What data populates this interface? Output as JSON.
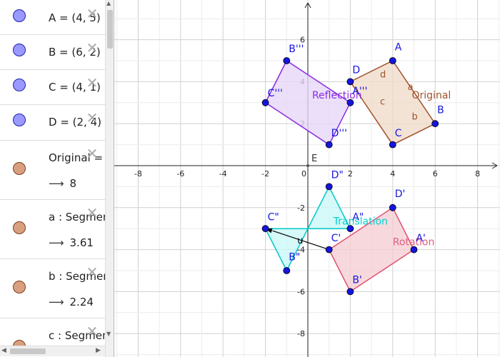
{
  "algebra": {
    "rows": [
      {
        "text": "A = (4, 5)"
      },
      {
        "text": "B = (6, 2)"
      },
      {
        "text": "C = (4, 1)"
      },
      {
        "text": "D = (2, 4)"
      },
      {
        "text": "Original =",
        "value": "8"
      },
      {
        "text": "a : Segmen",
        "value": "3.61"
      },
      {
        "text": "b : Segmen",
        "value": "2.24"
      },
      {
        "text": "c : Segmen"
      }
    ],
    "arrow": "⟶",
    "close": "✕"
  },
  "graph": {
    "x_ticks": [
      "-8",
      "-6",
      "-4",
      "-2",
      "0",
      "2",
      "4",
      "6",
      "8"
    ],
    "y_ticks": [
      "6",
      "4",
      "2",
      "-2",
      "-4",
      "-6",
      "-8"
    ],
    "origin_label": "E",
    "polygons": [
      {
        "name": "Original",
        "points": [
          [
            4,
            5
          ],
          [
            6,
            2
          ],
          [
            4,
            1
          ],
          [
            2,
            4
          ]
        ],
        "fill": "#f0dccb",
        "stroke": "#a0522d"
      },
      {
        "name": "Reflection",
        "points": [
          [
            -1,
            5
          ],
          [
            -2,
            3
          ],
          [
            1,
            1
          ],
          [
            2,
            3
          ]
        ],
        "fill": "#e6d7f7",
        "stroke": "#8a2be2"
      },
      {
        "name": "Translation",
        "points": [
          [
            -2,
            -3
          ],
          [
            -1,
            -5
          ],
          [
            1,
            -1
          ],
          [
            2,
            -3
          ]
        ],
        "fill": "#ccf7f7",
        "stroke": "#00c8c8"
      },
      {
        "name": "Rotation",
        "points": [
          [
            4,
            -2
          ],
          [
            5,
            -4
          ],
          [
            2,
            -6
          ],
          [
            1,
            -4
          ]
        ],
        "fill": "#f5d0d5",
        "stroke": "#e05070"
      }
    ],
    "poly_labels": [
      {
        "text": "Original",
        "x": 4.9,
        "y": 3.2,
        "color": "#a0522d"
      },
      {
        "text": "Reflection",
        "x": 0.2,
        "y": 3.2,
        "color": "#8a2be2"
      },
      {
        "text": "Translation",
        "x": 1.2,
        "y": -2.8,
        "color": "#00d0d0"
      },
      {
        "text": "Rotation",
        "x": 4.0,
        "y": -3.8,
        "color": "#e06080"
      }
    ],
    "segment_labels": [
      {
        "text": "a",
        "x": 4.7,
        "y": 3.6,
        "color": "#a0522d"
      },
      {
        "text": "b",
        "x": 4.9,
        "y": 2.2,
        "color": "#a0522d"
      },
      {
        "text": "c",
        "x": 3.4,
        "y": 2.9,
        "color": "#a0522d"
      },
      {
        "text": "d",
        "x": 3.4,
        "y": 4.2,
        "color": "#a0522d"
      }
    ],
    "points": [
      {
        "label": "A",
        "x": 4,
        "y": 5,
        "lx": 4.1,
        "ly": 5.5
      },
      {
        "label": "B",
        "x": 6,
        "y": 2,
        "lx": 6.1,
        "ly": 2.5
      },
      {
        "label": "C",
        "x": 4,
        "y": 1,
        "lx": 4.1,
        "ly": 1.4
      },
      {
        "label": "D",
        "x": 2,
        "y": 4,
        "lx": 2.1,
        "ly": 4.4
      },
      {
        "label": "A'''",
        "x": 2,
        "y": 3,
        "lx": 2.1,
        "ly": 3.4
      },
      {
        "label": "B'''",
        "x": -1,
        "y": 5,
        "lx": -0.9,
        "ly": 5.4
      },
      {
        "label": "C'''",
        "x": -2,
        "y": 3,
        "lx": -1.9,
        "ly": 3.3
      },
      {
        "label": "D'''",
        "x": 1,
        "y": 1,
        "lx": 1.1,
        "ly": 1.4
      },
      {
        "label": "A\"",
        "x": 2,
        "y": -3,
        "lx": 2.1,
        "ly": -2.6
      },
      {
        "label": "B\"",
        "x": -1,
        "y": -5,
        "lx": -0.9,
        "ly": -4.5
      },
      {
        "label": "C\"",
        "x": -2,
        "y": -3,
        "lx": -1.9,
        "ly": -2.6
      },
      {
        "label": "D\"",
        "x": 1,
        "y": -1,
        "lx": 1.1,
        "ly": -0.6
      },
      {
        "label": "A'",
        "x": 5,
        "y": -4,
        "lx": 5.1,
        "ly": -3.6
      },
      {
        "label": "B'",
        "x": 2,
        "y": -6,
        "lx": 2.1,
        "ly": -5.6
      },
      {
        "label": "C'",
        "x": 1,
        "y": -4,
        "lx": 1.1,
        "ly": -3.6
      },
      {
        "label": "D'",
        "x": 4,
        "y": -2,
        "lx": 4.1,
        "ly": -1.5
      }
    ],
    "vector": {
      "label": "u",
      "from": [
        1,
        -4
      ],
      "to": [
        -2,
        -3
      ],
      "lx": -0.5,
      "ly": -3.7
    }
  }
}
